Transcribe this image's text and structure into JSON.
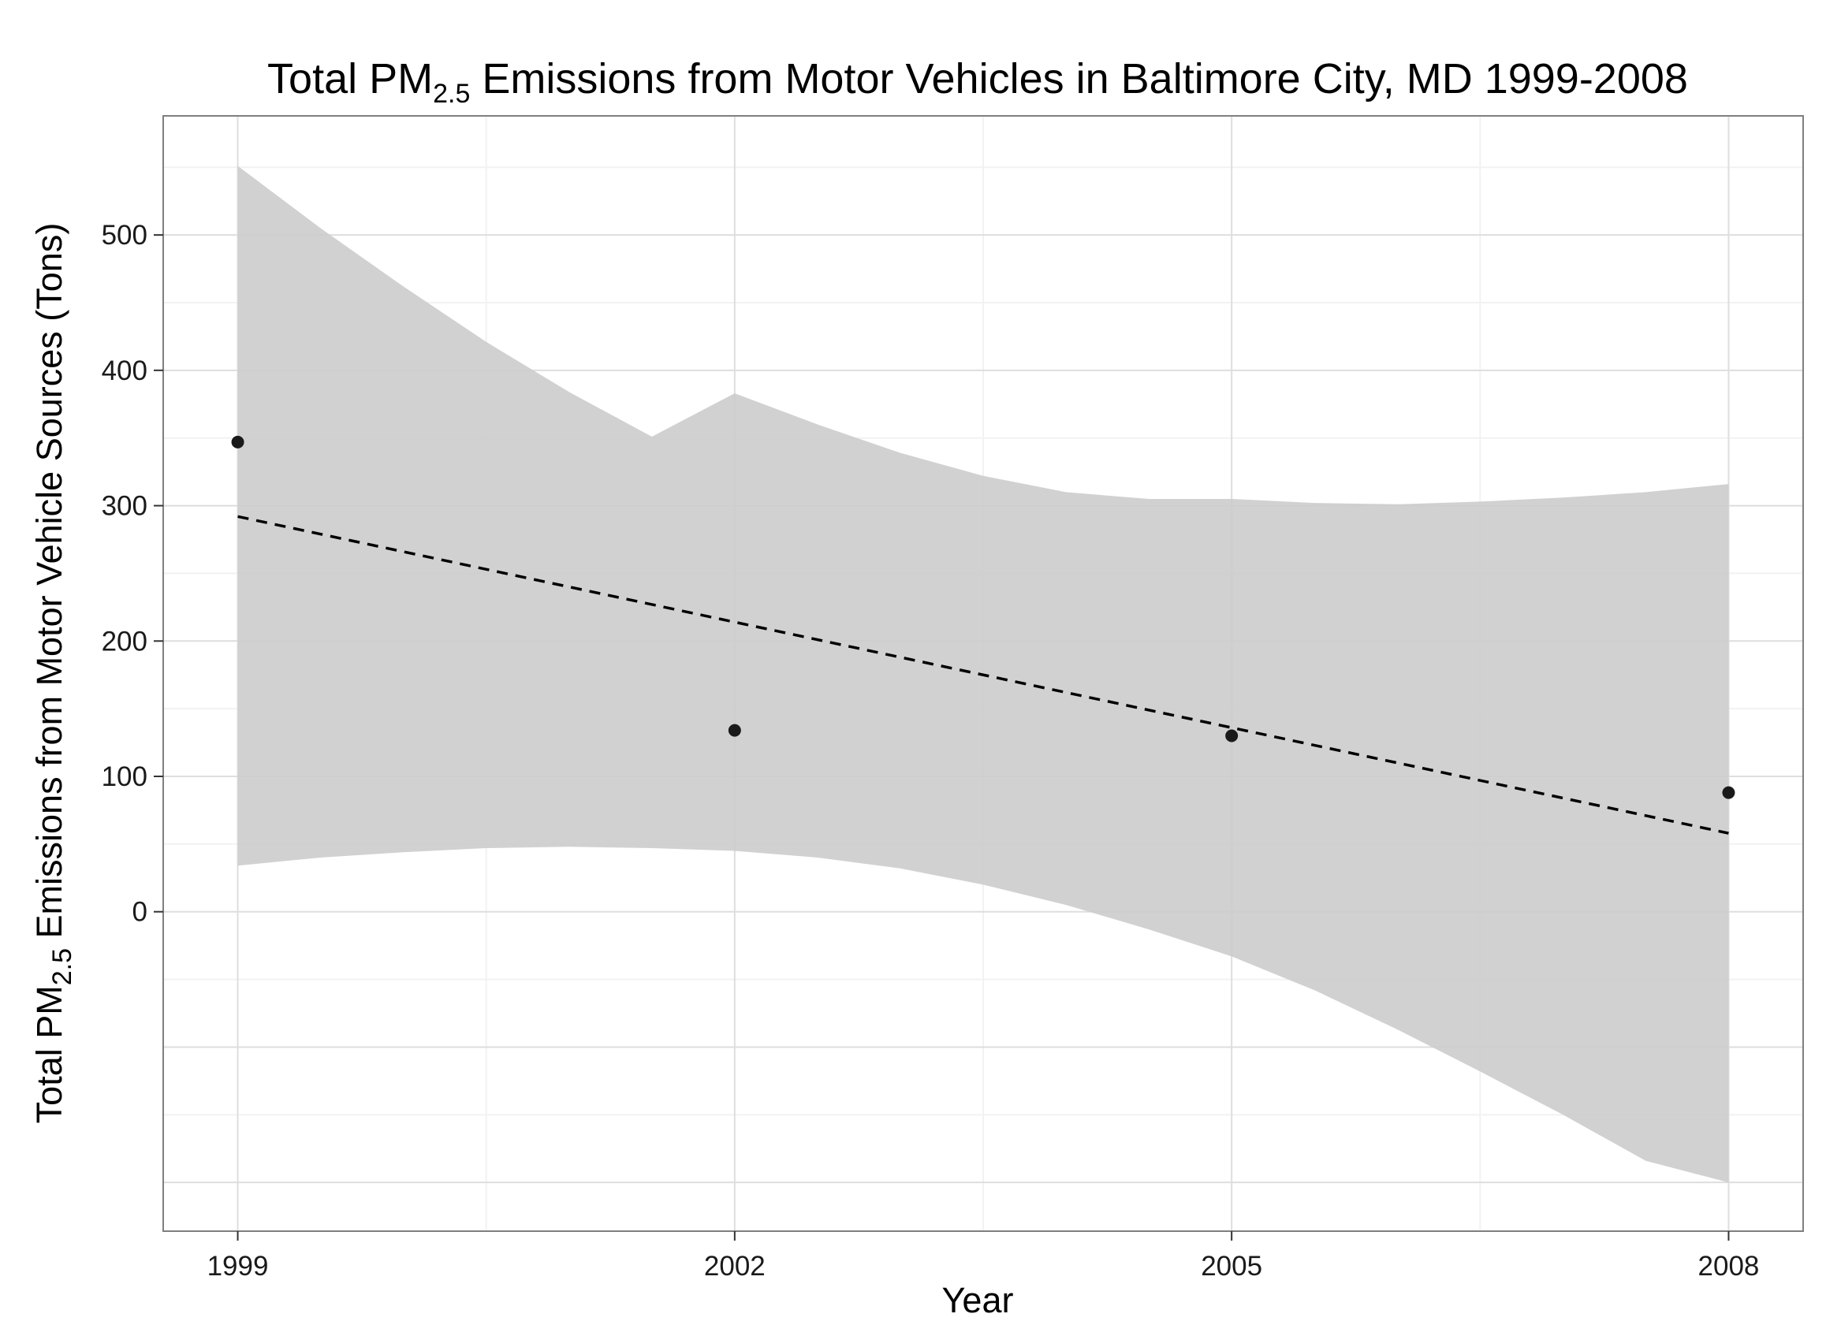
{
  "chart_data": {
    "type": "scatter",
    "title": {
      "prefix": "Total PM",
      "sub": "2.5",
      "suffix": " Emissions from Motor Vehicles in Baltimore City, MD 1999-2008"
    },
    "xlabel": "Year",
    "ylabel": {
      "prefix": "Total PM",
      "sub": "2.5",
      "suffix": " Emissions from Motor Vehicle Sources (Tons)"
    },
    "x_ticks": [
      "1999",
      "2002",
      "2005",
      "2008"
    ],
    "y_ticks": [
      "0",
      "100",
      "200",
      "300",
      "400",
      "500"
    ],
    "xlim": [
      1998.55,
      2008.45
    ],
    "ylim": [
      -236,
      588
    ],
    "grid": true,
    "points": [
      {
        "x": 1999,
        "y": 347
      },
      {
        "x": 2002,
        "y": 134
      },
      {
        "x": 2005,
        "y": 130
      },
      {
        "x": 2008,
        "y": 88
      }
    ],
    "trend_line": {
      "style": "dashed",
      "x": [
        1999,
        2008
      ],
      "y": [
        292,
        58
      ]
    },
    "confidence_band": {
      "x": [
        1999,
        1999.5,
        2000,
        2000.5,
        2001,
        2001.5,
        2002,
        2002.5,
        2003,
        2003.5,
        2004,
        2004.5,
        2005,
        2005.5,
        2006,
        2006.5,
        2007,
        2007.5,
        2008
      ],
      "upper": [
        551,
        505,
        462,
        421,
        384,
        351,
        383,
        360,
        339,
        322,
        310,
        305,
        305,
        302,
        301,
        303,
        306,
        310,
        316
      ],
      "lower": [
        34,
        40,
        44,
        47,
        48,
        47,
        45,
        40,
        32,
        20,
        5,
        -13,
        -33,
        -58,
        -87,
        -118,
        -150,
        -184,
        -200
      ]
    },
    "colors": {
      "band": "#cccccc",
      "points": "#1a1a1a",
      "line": "#000000",
      "grid_major": "#dedede",
      "grid_minor": "#f2f2f2",
      "border": "#7f7f7f"
    }
  }
}
